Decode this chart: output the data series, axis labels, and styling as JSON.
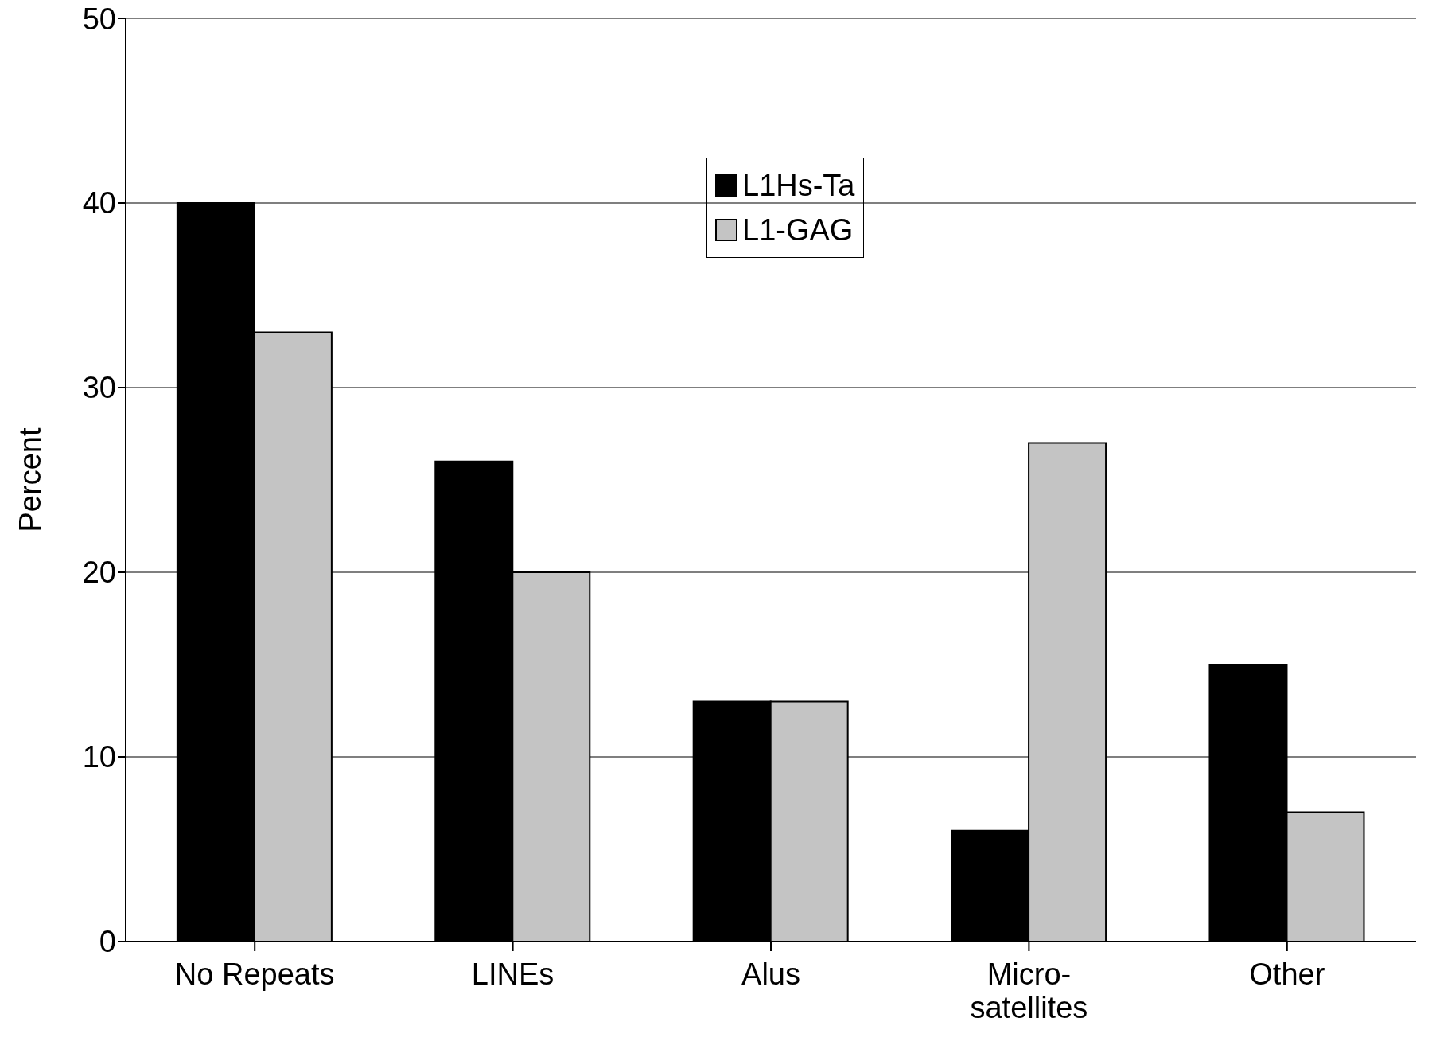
{
  "chart_data": {
    "type": "bar",
    "ylabel": "Percent",
    "categories": [
      "No Repeats",
      "LINEs",
      "Alus",
      "Micro-satellites",
      "Other"
    ],
    "series": [
      {
        "name": "L1Hs-Ta",
        "color": "#000000",
        "values": [
          40,
          26,
          13,
          6,
          15
        ]
      },
      {
        "name": "L1-GAG",
        "color": "#c4c4c4",
        "values": [
          33,
          20,
          13,
          27,
          7
        ]
      }
    ],
    "ylim": [
      0,
      50
    ],
    "yticks": [
      0,
      10,
      20,
      30,
      40,
      50
    ],
    "grid": "y",
    "legend": "top"
  }
}
